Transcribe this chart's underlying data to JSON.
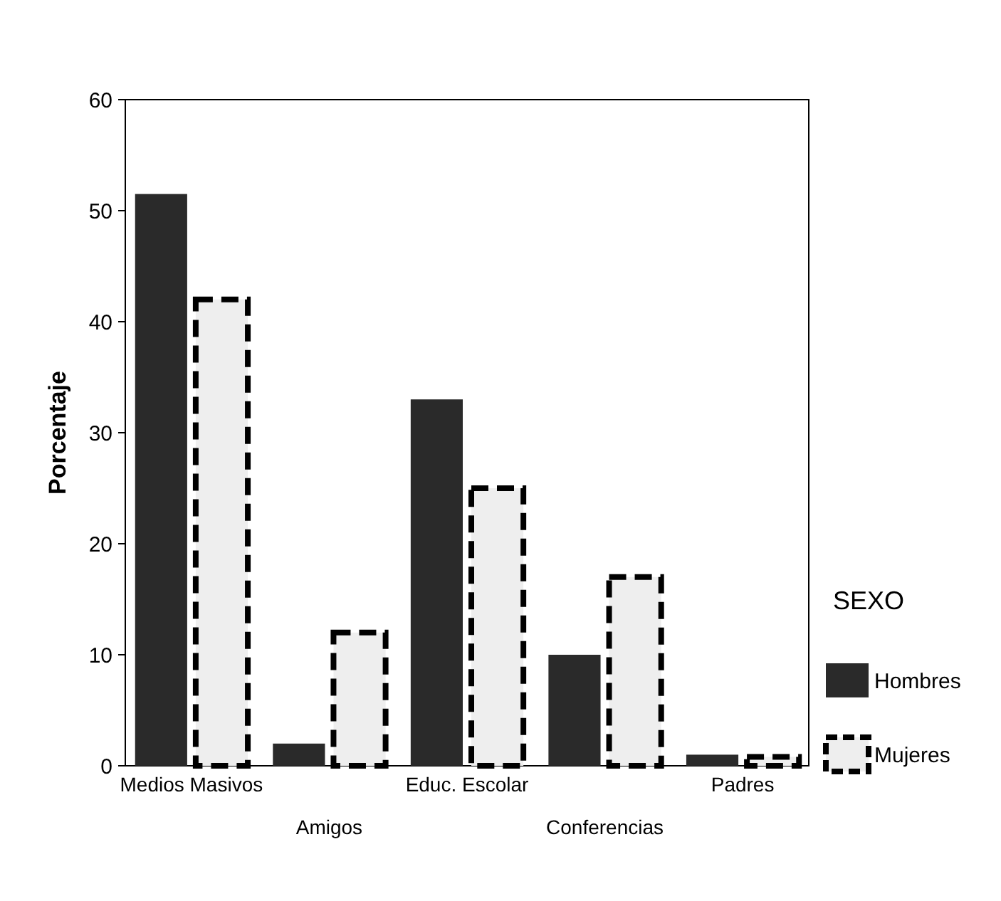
{
  "chart_data": {
    "type": "bar",
    "ylabel": "Porcentaje",
    "legend_title": "SEXO",
    "legend": "right",
    "categories": [
      "Medios Masivos",
      "Amigos",
      "Educ. Escolar",
      "Conferencias",
      "Padres"
    ],
    "ylim": [
      0,
      60
    ],
    "yticks": [
      0,
      10,
      20,
      30,
      40,
      50,
      60
    ],
    "series": [
      {
        "name": "Hombres",
        "color": "#2a2a2a",
        "values": [
          51.5,
          2,
          33,
          10,
          1
        ]
      },
      {
        "name": "Mujeres",
        "color": "#eeeeee",
        "line_style": "dashed",
        "values": [
          42,
          12,
          25,
          17,
          0.8
        ]
      }
    ]
  }
}
